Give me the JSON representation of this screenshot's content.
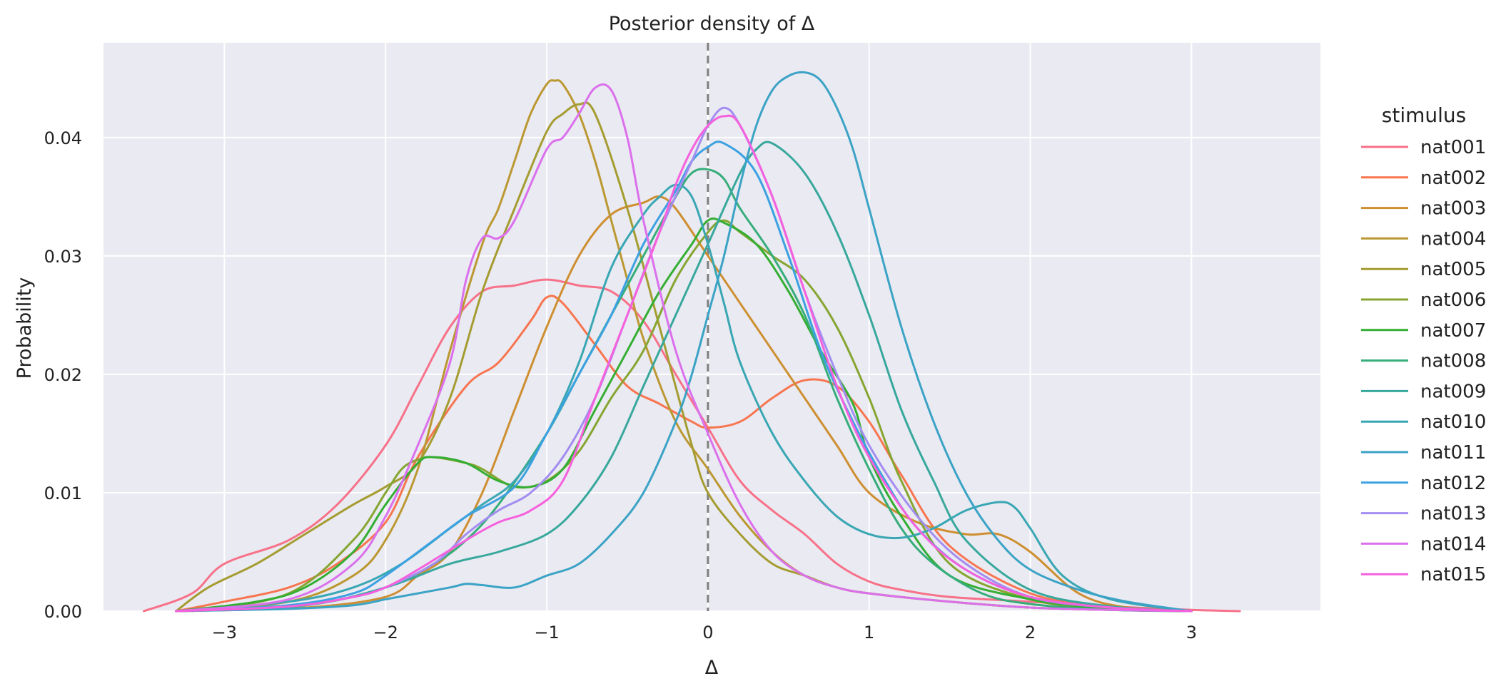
{
  "chart_data": {
    "type": "line",
    "title": "Posterior density of Δ",
    "xlabel": "Δ",
    "ylabel": "Probability",
    "xlim": [
      -3.75,
      3.8
    ],
    "ylim": [
      0,
      0.048
    ],
    "xticks": [
      -3,
      -2,
      -1,
      0,
      1,
      2,
      3
    ],
    "xtick_labels": [
      "−3",
      "−2",
      "−1",
      "0",
      "1",
      "2",
      "3"
    ],
    "yticks": [
      0,
      0.01,
      0.02,
      0.03,
      0.04
    ],
    "ytick_labels": [
      "0.00",
      "0.01",
      "0.02",
      "0.03",
      "0.04"
    ],
    "grid": true,
    "reference_line": {
      "x": 0,
      "style": "dashed",
      "color": "#808080"
    },
    "legend": {
      "title": "stimulus",
      "placement": "outside-right"
    },
    "series": [
      {
        "name": "nat001",
        "color": "#f77189",
        "x": [
          -3.5,
          -3.2,
          -3.0,
          -2.6,
          -2.3,
          -2.0,
          -1.8,
          -1.6,
          -1.4,
          -1.2,
          -1.0,
          -0.8,
          -0.6,
          -0.4,
          -0.2,
          0.0,
          0.2,
          0.4,
          0.6,
          0.8,
          1.0,
          1.2,
          1.5,
          2.0,
          2.5,
          3.0,
          3.3
        ],
        "y": [
          0,
          0.0015,
          0.004,
          0.006,
          0.009,
          0.014,
          0.019,
          0.024,
          0.027,
          0.0275,
          0.028,
          0.0275,
          0.027,
          0.0245,
          0.02,
          0.0155,
          0.011,
          0.0085,
          0.0065,
          0.004,
          0.0025,
          0.0018,
          0.0012,
          0.0008,
          0.0004,
          0.0001,
          0
        ]
      },
      {
        "name": "nat002",
        "color": "#f7754f",
        "x": [
          -3.3,
          -3.0,
          -2.6,
          -2.3,
          -2.0,
          -1.8,
          -1.5,
          -1.3,
          -1.1,
          -1.0,
          -0.9,
          -0.7,
          -0.5,
          -0.3,
          -0.1,
          0.0,
          0.2,
          0.4,
          0.6,
          0.8,
          1.0,
          1.2,
          1.5,
          2.0,
          2.5,
          3.0
        ],
        "y": [
          0,
          0.0008,
          0.002,
          0.004,
          0.0075,
          0.013,
          0.019,
          0.021,
          0.0245,
          0.0265,
          0.026,
          0.0225,
          0.019,
          0.0175,
          0.016,
          0.0155,
          0.016,
          0.018,
          0.0195,
          0.019,
          0.016,
          0.0115,
          0.0055,
          0.0015,
          0.0004,
          0
        ]
      },
      {
        "name": "nat003",
        "color": "#ce8f31",
        "x": [
          -3.3,
          -2.5,
          -2.0,
          -1.8,
          -1.6,
          -1.4,
          -1.2,
          -1.0,
          -0.8,
          -0.6,
          -0.4,
          -0.3,
          -0.2,
          0.0,
          0.2,
          0.4,
          0.6,
          0.8,
          1.0,
          1.3,
          1.6,
          1.8,
          2.0,
          2.3,
          2.6,
          3.0
        ],
        "y": [
          0,
          0.0003,
          0.0012,
          0.003,
          0.005,
          0.01,
          0.017,
          0.024,
          0.03,
          0.0335,
          0.0345,
          0.035,
          0.034,
          0.03,
          0.026,
          0.022,
          0.018,
          0.014,
          0.01,
          0.0075,
          0.0065,
          0.0065,
          0.005,
          0.0015,
          0.0003,
          0
        ]
      },
      {
        "name": "nat004",
        "color": "#bb9832",
        "x": [
          -3.3,
          -2.6,
          -2.2,
          -2.0,
          -1.8,
          -1.6,
          -1.4,
          -1.3,
          -1.2,
          -1.1,
          -1.0,
          -0.95,
          -0.9,
          -0.8,
          -0.7,
          -0.6,
          -0.5,
          -0.4,
          -0.2,
          0.0,
          0.2,
          0.4,
          0.6,
          0.8,
          1.0,
          1.5,
          2.0,
          2.5,
          3.0
        ],
        "y": [
          0,
          0.0008,
          0.003,
          0.006,
          0.012,
          0.022,
          0.031,
          0.034,
          0.038,
          0.042,
          0.0445,
          0.0448,
          0.0445,
          0.042,
          0.038,
          0.033,
          0.028,
          0.023,
          0.016,
          0.012,
          0.008,
          0.005,
          0.003,
          0.002,
          0.0015,
          0.0008,
          0.0003,
          0.0001,
          0
        ]
      },
      {
        "name": "nat005",
        "color": "#a59c31",
        "x": [
          -3.3,
          -3.1,
          -2.8,
          -2.5,
          -2.2,
          -2.0,
          -1.8,
          -1.6,
          -1.4,
          -1.2,
          -1.0,
          -0.9,
          -0.8,
          -0.7,
          -0.5,
          -0.3,
          -0.1,
          0.0,
          0.2,
          0.4,
          0.6,
          0.8,
          1.0,
          1.5,
          2.0,
          2.5,
          3.0
        ],
        "y": [
          0,
          0.002,
          0.004,
          0.0065,
          0.009,
          0.0105,
          0.0125,
          0.018,
          0.027,
          0.034,
          0.0405,
          0.042,
          0.0428,
          0.042,
          0.034,
          0.024,
          0.014,
          0.01,
          0.0065,
          0.004,
          0.003,
          0.002,
          0.0015,
          0.0008,
          0.0003,
          0.0001,
          0
        ]
      },
      {
        "name": "nat006",
        "color": "#86a531",
        "x": [
          -3.2,
          -2.6,
          -2.2,
          -2.0,
          -1.9,
          -1.8,
          -1.7,
          -1.5,
          -1.4,
          -1.2,
          -1.0,
          -0.8,
          -0.6,
          -0.4,
          -0.2,
          0.0,
          0.1,
          0.2,
          0.4,
          0.6,
          0.8,
          1.0,
          1.2,
          1.5,
          2.0,
          2.5,
          3.0
        ],
        "y": [
          0,
          0.0015,
          0.006,
          0.01,
          0.012,
          0.0128,
          0.013,
          0.0125,
          0.012,
          0.0105,
          0.011,
          0.0135,
          0.018,
          0.022,
          0.028,
          0.032,
          0.033,
          0.032,
          0.03,
          0.028,
          0.024,
          0.018,
          0.011,
          0.004,
          0.001,
          0.0002,
          0
        ]
      },
      {
        "name": "nat007",
        "color": "#34ae33",
        "x": [
          -3.3,
          -2.8,
          -2.5,
          -2.2,
          -2.0,
          -1.8,
          -1.7,
          -1.5,
          -1.3,
          -1.1,
          -0.9,
          -0.7,
          -0.5,
          -0.3,
          -0.1,
          0.0,
          0.1,
          0.3,
          0.5,
          0.7,
          0.9,
          1.0,
          1.2,
          1.5,
          2.0,
          2.5,
          3.0
        ],
        "y": [
          0,
          0.0008,
          0.002,
          0.005,
          0.009,
          0.0125,
          0.013,
          0.0125,
          0.011,
          0.0105,
          0.012,
          0.017,
          0.022,
          0.027,
          0.031,
          0.033,
          0.0328,
          0.031,
          0.027,
          0.022,
          0.0175,
          0.013,
          0.008,
          0.003,
          0.001,
          0.0002,
          0
        ]
      },
      {
        "name": "nat008",
        "color": "#36ad7a",
        "x": [
          -3.3,
          -2.5,
          -2.0,
          -1.7,
          -1.5,
          -1.3,
          -1.0,
          -0.8,
          -0.6,
          -0.4,
          -0.2,
          -0.1,
          0.0,
          0.1,
          0.2,
          0.4,
          0.6,
          0.8,
          1.0,
          1.2,
          1.4,
          1.7,
          2.0,
          2.5,
          3.0
        ],
        "y": [
          0,
          0.0005,
          0.002,
          0.004,
          0.006,
          0.009,
          0.015,
          0.02,
          0.025,
          0.03,
          0.035,
          0.037,
          0.0373,
          0.0365,
          0.034,
          0.03,
          0.025,
          0.018,
          0.012,
          0.007,
          0.004,
          0.0015,
          0.0006,
          0.0001,
          0
        ]
      },
      {
        "name": "nat009",
        "color": "#38a89d",
        "x": [
          -3.3,
          -2.5,
          -2.0,
          -1.6,
          -1.3,
          -1.0,
          -0.8,
          -0.6,
          -0.4,
          -0.2,
          0.0,
          0.2,
          0.3,
          0.4,
          0.6,
          0.8,
          1.0,
          1.2,
          1.4,
          1.6,
          2.0,
          2.5,
          3.0
        ],
        "y": [
          0,
          0.0005,
          0.002,
          0.004,
          0.005,
          0.0065,
          0.009,
          0.013,
          0.019,
          0.025,
          0.031,
          0.037,
          0.039,
          0.0395,
          0.037,
          0.032,
          0.025,
          0.017,
          0.011,
          0.006,
          0.0018,
          0.0004,
          0
        ]
      },
      {
        "name": "nat010",
        "color": "#39a7b3",
        "x": [
          -3.3,
          -2.6,
          -2.2,
          -1.9,
          -1.6,
          -1.4,
          -1.2,
          -1.0,
          -0.8,
          -0.6,
          -0.4,
          -0.3,
          -0.2,
          -0.1,
          0.0,
          0.1,
          0.2,
          0.4,
          0.6,
          0.8,
          1.0,
          1.2,
          1.4,
          1.6,
          1.8,
          1.9,
          2.0,
          2.2,
          2.5,
          3.0
        ],
        "y": [
          0,
          0.0008,
          0.002,
          0.004,
          0.007,
          0.009,
          0.011,
          0.015,
          0.021,
          0.029,
          0.0335,
          0.035,
          0.036,
          0.035,
          0.031,
          0.026,
          0.021,
          0.015,
          0.011,
          0.008,
          0.0065,
          0.0062,
          0.007,
          0.0085,
          0.0092,
          0.0088,
          0.007,
          0.003,
          0.001,
          0
        ]
      },
      {
        "name": "nat011",
        "color": "#3ba3c5",
        "x": [
          -3.3,
          -2.6,
          -2.2,
          -2.0,
          -1.8,
          -1.6,
          -1.5,
          -1.4,
          -1.2,
          -1.0,
          -0.8,
          -0.6,
          -0.4,
          -0.2,
          -0.1,
          0.0,
          0.1,
          0.2,
          0.3,
          0.4,
          0.5,
          0.6,
          0.7,
          0.8,
          0.9,
          1.0,
          1.2,
          1.4,
          1.6,
          1.8,
          2.0,
          2.3,
          2.6,
          3.0
        ],
        "y": [
          0,
          0.0002,
          0.0005,
          0.001,
          0.0015,
          0.002,
          0.0023,
          0.0022,
          0.002,
          0.003,
          0.004,
          0.0065,
          0.01,
          0.016,
          0.02,
          0.025,
          0.03,
          0.036,
          0.041,
          0.044,
          0.0452,
          0.0455,
          0.0448,
          0.0425,
          0.039,
          0.034,
          0.024,
          0.016,
          0.01,
          0.006,
          0.0035,
          0.0018,
          0.0008,
          0
        ]
      },
      {
        "name": "nat012",
        "color": "#3ca1e1",
        "x": [
          -3.3,
          -2.6,
          -2.2,
          -2.0,
          -1.7,
          -1.5,
          -1.2,
          -1.0,
          -0.8,
          -0.6,
          -0.4,
          -0.2,
          -0.1,
          0.0,
          0.1,
          0.3,
          0.5,
          0.7,
          0.9,
          1.1,
          1.3,
          1.6,
          2.0,
          2.5,
          3.0
        ],
        "y": [
          0,
          0.0005,
          0.0015,
          0.003,
          0.006,
          0.008,
          0.0105,
          0.015,
          0.02,
          0.025,
          0.031,
          0.0355,
          0.038,
          0.0392,
          0.0395,
          0.037,
          0.03,
          0.022,
          0.016,
          0.011,
          0.007,
          0.0035,
          0.0012,
          0.0003,
          0
        ]
      },
      {
        "name": "nat013",
        "color": "#a38df0",
        "x": [
          -3.3,
          -2.6,
          -2.2,
          -2.0,
          -1.7,
          -1.5,
          -1.3,
          -1.1,
          -0.9,
          -0.7,
          -0.5,
          -0.3,
          -0.1,
          0.0,
          0.1,
          0.2,
          0.4,
          0.6,
          0.8,
          1.0,
          1.3,
          1.6,
          2.0,
          2.5,
          3.0
        ],
        "y": [
          0,
          0.0004,
          0.0012,
          0.002,
          0.004,
          0.0065,
          0.0085,
          0.01,
          0.013,
          0.018,
          0.025,
          0.032,
          0.038,
          0.041,
          0.0425,
          0.041,
          0.035,
          0.027,
          0.02,
          0.014,
          0.008,
          0.004,
          0.0012,
          0.0003,
          0
        ]
      },
      {
        "name": "nat014",
        "color": "#db70ec",
        "x": [
          -3.3,
          -2.6,
          -2.2,
          -2.0,
          -1.8,
          -1.6,
          -1.5,
          -1.4,
          -1.3,
          -1.2,
          -1.0,
          -0.9,
          -0.8,
          -0.7,
          -0.6,
          -0.5,
          -0.4,
          -0.2,
          0.0,
          0.2,
          0.4,
          0.6,
          0.8,
          1.0,
          1.5,
          2.0,
          2.5,
          3.0
        ],
        "y": [
          0,
          0.001,
          0.004,
          0.008,
          0.014,
          0.021,
          0.028,
          0.0315,
          0.0315,
          0.033,
          0.039,
          0.04,
          0.042,
          0.0442,
          0.044,
          0.04,
          0.033,
          0.022,
          0.015,
          0.009,
          0.005,
          0.003,
          0.002,
          0.0015,
          0.0008,
          0.0003,
          0.0001,
          0
        ]
      },
      {
        "name": "nat015",
        "color": "#f561dd",
        "x": [
          -3.3,
          -2.6,
          -2.2,
          -2.0,
          -1.8,
          -1.5,
          -1.3,
          -1.1,
          -0.9,
          -0.7,
          -0.5,
          -0.3,
          -0.2,
          -0.1,
          0.0,
          0.1,
          0.2,
          0.4,
          0.6,
          0.8,
          1.0,
          1.3,
          1.6,
          2.0,
          2.5,
          3.0
        ],
        "y": [
          0,
          0.0004,
          0.0012,
          0.002,
          0.0035,
          0.006,
          0.0075,
          0.0085,
          0.011,
          0.018,
          0.025,
          0.032,
          0.036,
          0.039,
          0.041,
          0.0418,
          0.041,
          0.035,
          0.027,
          0.019,
          0.013,
          0.007,
          0.0035,
          0.0012,
          0.0003,
          0
        ]
      }
    ]
  }
}
